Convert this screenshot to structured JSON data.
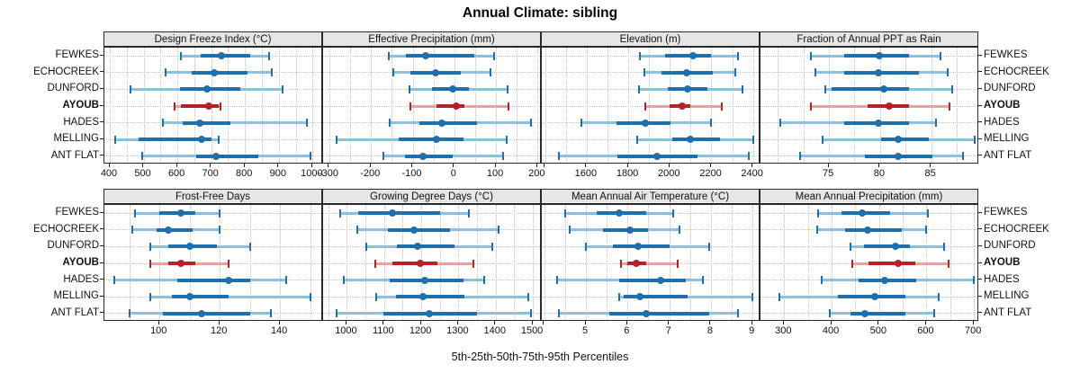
{
  "title": "Annual Climate: sibling",
  "footer": "5th-25th-50th-75th-95th Percentiles",
  "stations": [
    "FEWKES",
    "ECHOCREEK",
    "DUNFORD",
    "AYOUB",
    "HADES",
    "MELLING",
    "ANT FLAT"
  ],
  "highlighted_station": "AYOUB",
  "colors": {
    "blue_dark": "#1d6fad",
    "blue_light": "#8cc0e0",
    "red_dark": "#b32226",
    "red_light": "#e2a3a3",
    "grid": "#c3c3c3",
    "strip_bg": "#e6e6e6",
    "panel_border": "#2a2a2a"
  },
  "chart_data": {
    "type": "percentile-dotplot",
    "percentiles": [
      5,
      25,
      50,
      75,
      95
    ],
    "layout": {
      "rows": 2,
      "cols": 4,
      "station_labels_both_sides": true,
      "grid_dotted": true
    },
    "panels": [
      {
        "title": "Design Freeze Index (°C)",
        "xlim": [
          384,
          1031
        ],
        "ticks": [
          400,
          500,
          600,
          700,
          800,
          900,
          1000
        ],
        "tick_labels": [
          "400",
          "500",
          "600",
          "700",
          "800",
          "900",
          "1000"
        ],
        "grid_step": 50,
        "values": {
          "FEWKES": [
            609,
            669,
            729,
            816,
            872
          ],
          "ECHOCREEK": [
            565,
            643,
            709,
            807,
            879
          ],
          "DUNFORD": [
            460,
            607,
            687,
            785,
            910
          ],
          "AYOUB": [
            592,
            611,
            692,
            723,
            727
          ],
          "HADES": [
            556,
            616,
            665,
            758,
            984
          ],
          "MELLING": [
            415,
            486,
            671,
            700,
            721
          ],
          "ANT FLAT": [
            497,
            656,
            714,
            839,
            994
          ]
        }
      },
      {
        "title": "Effective Precipitation (mm)",
        "xlim": [
          -315,
          210
        ],
        "ticks": [
          -300,
          -200,
          -100,
          0,
          100,
          200
        ],
        "tick_labels": [
          "-300",
          "-200",
          "-100",
          "0",
          "100",
          "200"
        ],
        "grid_step": 50,
        "values": {
          "FEWKES": [
            -157,
            -116,
            -69,
            47,
            96
          ],
          "ECHOCREEK": [
            -147,
            -105,
            -45,
            15,
            87
          ],
          "DUNFORD": [
            -108,
            -54,
            -3,
            36,
            127
          ],
          "AYOUB": [
            -105,
            -43,
            4,
            24,
            130
          ],
          "HADES": [
            -155,
            -83,
            -29,
            54,
            184
          ],
          "MELLING": [
            -282,
            -134,
            -43,
            22,
            125
          ],
          "ANT FLAT": [
            -171,
            -119,
            -76,
            -3,
            118
          ]
        }
      },
      {
        "title": "Elevation (m)",
        "xlim": [
          1384,
          2436
        ],
        "ticks": [
          1400,
          1600,
          1800,
          2000,
          2200,
          2400
        ],
        "tick_labels": [
          "",
          "1600",
          "1800",
          "2000",
          "2200",
          "2400"
        ],
        "grid_step": 100,
        "values": {
          "FEWKES": [
            1858,
            1977,
            2111,
            2198,
            2329
          ],
          "ECHOCREEK": [
            1877,
            1959,
            2080,
            2206,
            2314
          ],
          "DUNFORD": [
            1853,
            1988,
            2085,
            2181,
            2348
          ],
          "AYOUB": [
            1880,
            2000,
            2061,
            2100,
            2249
          ],
          "HADES": [
            1575,
            1742,
            1880,
            2003,
            2196
          ],
          "MELLING": [
            1843,
            2010,
            2100,
            2242,
            2401
          ],
          "ANT FLAT": [
            1467,
            1749,
            1937,
            2133,
            2380
          ]
        }
      },
      {
        "title": "Fraction of Annual PPT as Rain",
        "xlim": [
          68.3,
          89.7
        ],
        "ticks": [
          75,
          80,
          85
        ],
        "tick_labels": [
          "75",
          "80",
          "85"
        ],
        "grid_step": 2.5,
        "values": {
          "FEWKES": [
            73.2,
            76.5,
            79.9,
            82.8,
            85.9
          ],
          "ECHOCREEK": [
            73.7,
            76.5,
            79.8,
            83.8,
            86.6
          ],
          "DUNFORD": [
            74.6,
            75.3,
            80.4,
            82.8,
            87.1
          ],
          "AYOUB": [
            73.2,
            78.8,
            80.9,
            82.8,
            86.8
          ],
          "HADES": [
            70.2,
            76.5,
            79.8,
            82.8,
            85.5
          ],
          "MELLING": [
            74.4,
            80.1,
            81.8,
            84.8,
            89.3
          ],
          "ANT FLAT": [
            72.2,
            78.5,
            81.8,
            85.1,
            88.1
          ]
        }
      },
      {
        "title": "Frost-Free Days",
        "xlim": [
          81.7,
          154.3
        ],
        "ticks": [
          100,
          120,
          140
        ],
        "tick_labels": [
          "100",
          "120",
          "140"
        ],
        "grid_step": 10,
        "values": {
          "FEWKES": [
            92,
            100,
            107,
            112,
            120
          ],
          "ECHOCREEK": [
            91,
            99,
            103,
            111,
            120
          ],
          "DUNFORD": [
            97,
            103,
            110,
            119,
            130
          ],
          "AYOUB": [
            97,
            103,
            107,
            112,
            123
          ],
          "HADES": [
            85,
            106,
            123,
            130,
            142
          ],
          "MELLING": [
            97,
            104,
            110,
            123,
            150
          ],
          "ANT FLAT": [
            90,
            101,
            114,
            130,
            137
          ]
        }
      },
      {
        "title": "Growing Degree Days (°C)",
        "xlim": [
          936,
          1524
        ],
        "ticks": [
          1000,
          1100,
          1200,
          1300,
          1400,
          1500
        ],
        "tick_labels": [
          "1000",
          "1100",
          "1200",
          "1300",
          "1400",
          "1500"
        ],
        "grid_step": 50,
        "values": {
          "FEWKES": [
            981,
            1030,
            1123,
            1250,
            1328
          ],
          "ECHOCREEK": [
            1028,
            1111,
            1180,
            1277,
            1409
          ],
          "DUNFORD": [
            1052,
            1135,
            1190,
            1289,
            1392
          ],
          "AYOUB": [
            1076,
            1123,
            1198,
            1244,
            1340
          ],
          "HADES": [
            992,
            1115,
            1210,
            1313,
            1368
          ],
          "MELLING": [
            1079,
            1131,
            1204,
            1317,
            1487
          ],
          "ANT FLAT": [
            972,
            1097,
            1222,
            1350,
            1495
          ]
        }
      },
      {
        "title": "Mean Annual Air Temperature (°C)",
        "xlim": [
          3.94,
          9.19
        ],
        "ticks": [
          4,
          5,
          6,
          7,
          8,
          9
        ],
        "tick_labels": [
          "",
          "5",
          "6",
          "7",
          "8",
          "9"
        ],
        "grid_step": 0.5,
        "values": {
          "FEWKES": [
            4.5,
            5.25,
            5.8,
            6.45,
            7.1
          ],
          "ECHOCREEK": [
            4.6,
            5.4,
            6.05,
            6.5,
            7.25
          ],
          "DUNFORD": [
            5.0,
            5.65,
            6.25,
            7.0,
            7.95
          ],
          "AYOUB": [
            5.85,
            6.0,
            6.2,
            6.45,
            7.2
          ],
          "HADES": [
            4.3,
            5.8,
            6.8,
            7.4,
            7.8
          ],
          "MELLING": [
            5.8,
            5.9,
            6.3,
            7.45,
            9.0
          ],
          "ANT FLAT": [
            4.35,
            5.55,
            6.45,
            7.95,
            8.65
          ]
        }
      },
      {
        "title": "Mean Annual Precipitation (mm)",
        "xlim": [
          250,
          711
        ],
        "ticks": [
          300,
          400,
          500,
          600,
          700
        ],
        "tick_labels": [
          "300",
          "400",
          "500",
          "600",
          "700"
        ],
        "grid_step": 50,
        "values": {
          "FEWKES": [
            372,
            420,
            465,
            524,
            603
          ],
          "ECHOCREEK": [
            370,
            429,
            475,
            548,
            600
          ],
          "DUNFORD": [
            440,
            468,
            535,
            564,
            637
          ],
          "AYOUB": [
            443,
            478,
            541,
            576,
            646
          ],
          "HADES": [
            379,
            456,
            511,
            579,
            700
          ],
          "MELLING": [
            289,
            413,
            490,
            556,
            625
          ],
          "ANT FLAT": [
            397,
            440,
            470,
            556,
            616
          ]
        }
      }
    ]
  }
}
